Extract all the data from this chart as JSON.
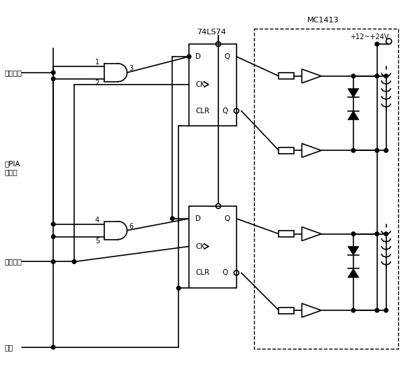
{
  "bg_color": "#ffffff",
  "line_color": "#000000",
  "fig_width": 5.93,
  "fig_height": 5.38,
  "dpi": 100,
  "labels": {
    "fangxiang": "方向控制",
    "zuPIA": "至PIA\n的入口",
    "qudong": "驱动脉冲",
    "fuwei": "复位",
    "ls74": "74LS74",
    "mc1413": "MC1413",
    "voltage": "+12~+24V"
  }
}
